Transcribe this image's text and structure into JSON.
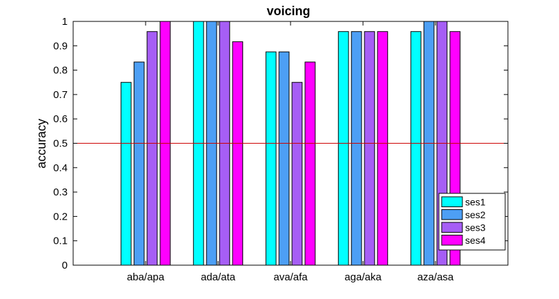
{
  "chart_data": {
    "type": "bar",
    "title": "voicing",
    "xlabel": "",
    "ylabel": "accuracy",
    "ylim": [
      0,
      1
    ],
    "yticks": [
      "0",
      "0.1",
      "0.2",
      "0.3",
      "0.4",
      "0.5",
      "0.6",
      "0.7",
      "0.8",
      "0.9",
      "1"
    ],
    "categories": [
      "aba/apa",
      "ada/ata",
      "ava/afa",
      "aga/aka",
      "aza/asa"
    ],
    "series": [
      {
        "name": "ses1",
        "color": "#00ffff",
        "values": [
          0.75,
          1.0,
          0.875,
          0.9583,
          0.9583
        ]
      },
      {
        "name": "ses2",
        "color": "#4d9ff5",
        "values": [
          0.8333,
          1.0,
          0.875,
          0.9583,
          1.0
        ]
      },
      {
        "name": "ses3",
        "color": "#a65ef5",
        "values": [
          0.9583,
          1.0,
          0.75,
          0.9583,
          1.0
        ]
      },
      {
        "name": "ses4",
        "color": "#ff00ff",
        "values": [
          1.0,
          0.9167,
          0.8333,
          0.9583,
          0.9583
        ]
      }
    ],
    "reference_line": {
      "y": 0.5,
      "color": "#cc0000"
    },
    "legend_position": "bottom-right",
    "grid": false
  }
}
